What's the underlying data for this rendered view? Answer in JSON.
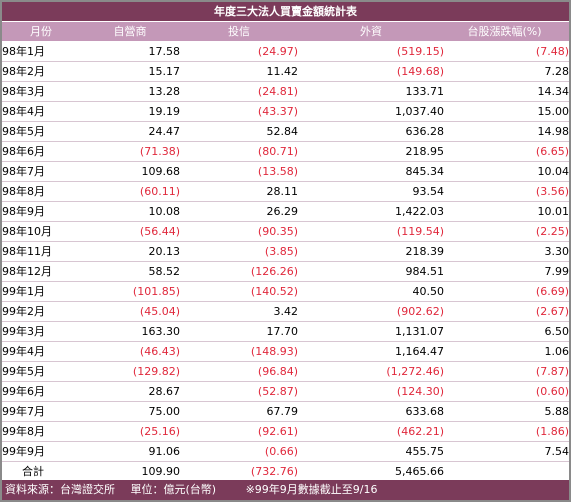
{
  "title": "年度三大法人買賣金額統計表",
  "headers": {
    "month": "月份",
    "dealer": "自營商",
    "trust": "投信",
    "foreign": "外資",
    "index": "台股漲跌幅(%)"
  },
  "rows": [
    {
      "month": "98年1月",
      "dealer": "17.58",
      "trust": "(24.97)",
      "foreign": "(519.15)",
      "index": "(7.48)"
    },
    {
      "month": "98年2月",
      "dealer": "15.17",
      "trust": "11.42",
      "foreign": "(149.68)",
      "index": "7.28"
    },
    {
      "month": "98年3月",
      "dealer": "13.28",
      "trust": "(24.81)",
      "foreign": "133.71",
      "index": "14.34"
    },
    {
      "month": "98年4月",
      "dealer": "19.19",
      "trust": "(43.37)",
      "foreign": "1,037.40",
      "index": "15.00"
    },
    {
      "month": "98年5月",
      "dealer": "24.47",
      "trust": "52.84",
      "foreign": "636.28",
      "index": "14.98"
    },
    {
      "month": "98年6月",
      "dealer": "(71.38)",
      "trust": "(80.71)",
      "foreign": "218.95",
      "index": "(6.65)"
    },
    {
      "month": "98年7月",
      "dealer": "109.68",
      "trust": "(13.58)",
      "foreign": "845.34",
      "index": "10.04"
    },
    {
      "month": "98年8月",
      "dealer": "(60.11)",
      "trust": "28.11",
      "foreign": "93.54",
      "index": "(3.56)"
    },
    {
      "month": "98年9月",
      "dealer": "10.08",
      "trust": "26.29",
      "foreign": "1,422.03",
      "index": "10.01"
    },
    {
      "month": "98年10月",
      "dealer": "(56.44)",
      "trust": "(90.35)",
      "foreign": "(119.54)",
      "index": "(2.25)"
    },
    {
      "month": "98年11月",
      "dealer": "20.13",
      "trust": "(3.85)",
      "foreign": "218.39",
      "index": "3.30"
    },
    {
      "month": "98年12月",
      "dealer": "58.52",
      "trust": "(126.26)",
      "foreign": "984.51",
      "index": "7.99"
    },
    {
      "month": "99年1月",
      "dealer": "(101.85)",
      "trust": "(140.52)",
      "foreign": "40.50",
      "index": "(6.69)"
    },
    {
      "month": "99年2月",
      "dealer": "(45.04)",
      "trust": "3.42",
      "foreign": "(902.62)",
      "index": "(2.67)"
    },
    {
      "month": "99年3月",
      "dealer": "163.30",
      "trust": "17.70",
      "foreign": "1,131.07",
      "index": "6.50"
    },
    {
      "month": "99年4月",
      "dealer": "(46.43)",
      "trust": "(148.93)",
      "foreign": "1,164.47",
      "index": "1.06"
    },
    {
      "month": "99年5月",
      "dealer": "(129.82)",
      "trust": "(96.84)",
      "foreign": "(1,272.46)",
      "index": "(7.87)"
    },
    {
      "month": "99年6月",
      "dealer": "28.67",
      "trust": "(52.87)",
      "foreign": "(124.30)",
      "index": "(0.60)"
    },
    {
      "month": "99年7月",
      "dealer": "75.00",
      "trust": "67.79",
      "foreign": "633.68",
      "index": "5.88"
    },
    {
      "month": "99年8月",
      "dealer": "(25.16)",
      "trust": "(92.61)",
      "foreign": "(462.21)",
      "index": "(1.86)"
    },
    {
      "month": "99年9月",
      "dealer": "91.06",
      "trust": "(0.66)",
      "foreign": "455.75",
      "index": "7.54"
    }
  ],
  "total": {
    "month": "合計",
    "dealer": "109.90",
    "trust": "(732.76)",
    "foreign": "5,465.66",
    "index": ""
  },
  "footer": {
    "source": "資料來源：台灣證交所",
    "unit": "單位：億元(台幣)",
    "note": "※99年9月數據截止至9/16"
  },
  "colors": {
    "title_bg": "#7b3b5a",
    "header_bg": "#c498b8",
    "negative": "#e0283c"
  }
}
